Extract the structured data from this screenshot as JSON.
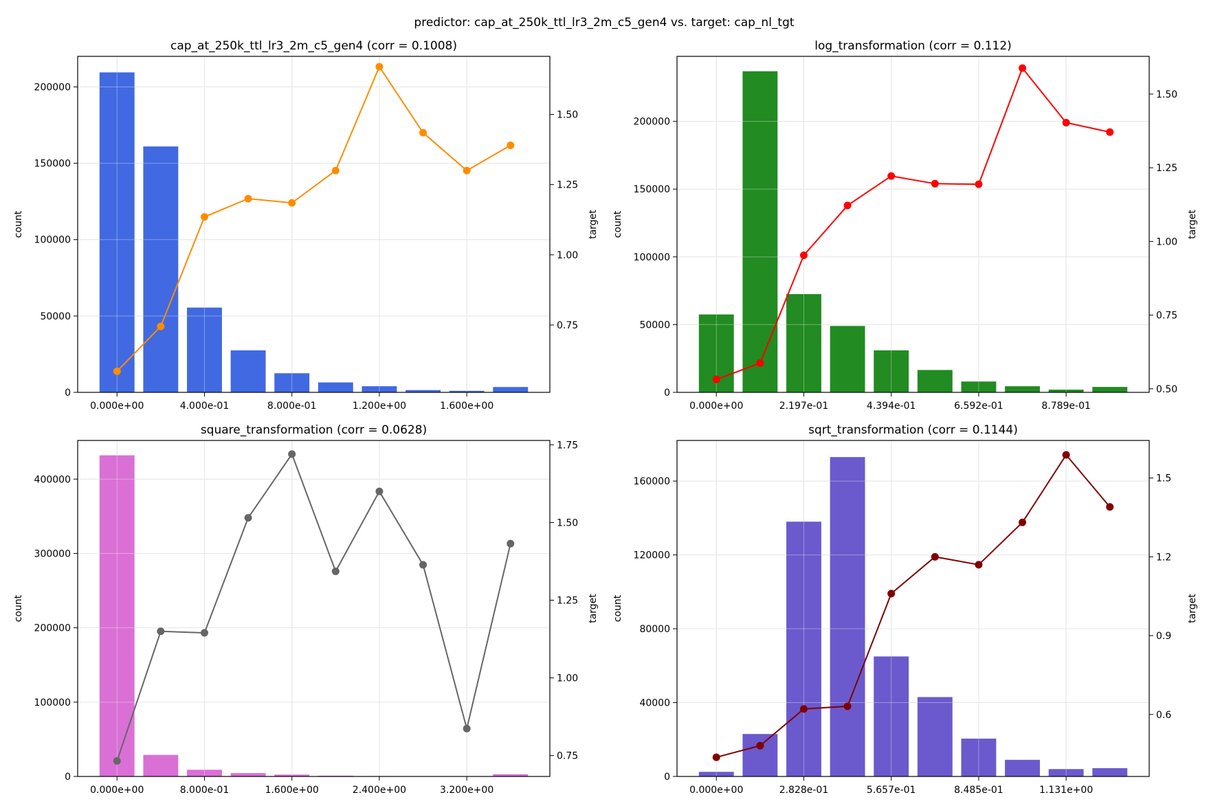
{
  "figure": {
    "suptitle": "predictor: cap_at_250k_ttl_lr3_2m_c5_gen4 vs. target: cap_nl_tgt"
  },
  "chart_data": [
    {
      "type": "bar",
      "title": "cap_at_250k_ttl_lr3_2m_c5_gen4 (corr = 0.1008)",
      "xlabel": "",
      "ylabel": "count",
      "y2label": "target",
      "bar_color": "#4169e1",
      "line_color": "#ff8c00",
      "x_tick_labels": [
        "0.000e+00",
        "4.000e-01",
        "8.000e-01",
        "1.200e+00",
        "1.600e+00"
      ],
      "x_tick_bins": [
        0,
        2,
        4,
        6,
        8
      ],
      "counts": [
        209500,
        161000,
        55500,
        27500,
        12500,
        6500,
        4000,
        1500,
        1000,
        3500
      ],
      "target": [
        0.585,
        0.745,
        1.135,
        1.2,
        1.185,
        1.3,
        1.67,
        1.435,
        1.3,
        1.39
      ],
      "ylim": [
        0,
        220000
      ],
      "y_ticks": [
        0,
        50000,
        100000,
        150000,
        200000
      ],
      "y2lim": [
        0.51,
        1.707
      ],
      "y2_ticks": [
        0.75,
        1.0,
        1.25,
        1.5
      ],
      "y2_tick_labels": [
        "0.75",
        "1.00",
        "1.25",
        "1.50"
      ],
      "grid": true
    },
    {
      "type": "bar",
      "title": "log_transformation (corr = 0.112)",
      "xlabel": "",
      "ylabel": "count",
      "y2label": "target",
      "bar_color": "#228b22",
      "line_color": "#ff0000",
      "x_tick_labels": [
        "0.000e+00",
        "2.197e-01",
        "4.394e-01",
        "6.592e-01",
        "8.789e-01"
      ],
      "x_tick_bins": [
        0,
        2,
        4,
        6,
        8
      ],
      "counts": [
        57500,
        237000,
        72500,
        49000,
        31000,
        16500,
        8000,
        4500,
        2000,
        4000
      ],
      "target": [
        0.532,
        0.587,
        0.953,
        1.122,
        1.222,
        1.196,
        1.194,
        1.588,
        1.403,
        1.371
      ],
      "ylim": [
        0,
        248000
      ],
      "y_ticks": [
        0,
        50000,
        100000,
        150000,
        200000
      ],
      "y2lim": [
        0.488,
        1.628
      ],
      "y2_ticks": [
        0.5,
        0.75,
        1.0,
        1.25,
        1.5
      ],
      "y2_tick_labels": [
        "0.50",
        "0.75",
        "1.00",
        "1.25",
        "1.50"
      ],
      "grid": true
    },
    {
      "type": "bar",
      "title": "square_transformation (corr = 0.0628)",
      "xlabel": "",
      "ylabel": "count",
      "y2label": "target",
      "bar_color": "#da70d6",
      "line_color": "#666666",
      "x_tick_labels": [
        "0.000e+00",
        "8.000e-01",
        "1.600e+00",
        "2.400e+00",
        "3.200e+00"
      ],
      "x_tick_bins": [
        0,
        2,
        4,
        6,
        8
      ],
      "counts": [
        432000,
        29000,
        9000,
        4500,
        2500,
        1000,
        500,
        300,
        200,
        3000
      ],
      "target": [
        0.733,
        1.15,
        1.145,
        1.515,
        1.72,
        1.343,
        1.6,
        1.364,
        0.837,
        1.432
      ],
      "ylim": [
        0,
        452000
      ],
      "y_ticks": [
        0,
        100000,
        200000,
        300000,
        400000
      ],
      "y2lim": [
        0.683,
        1.764
      ],
      "y2_ticks": [
        0.75,
        1.0,
        1.25,
        1.5,
        1.75
      ],
      "y2_tick_labels": [
        "0.75",
        "1.00",
        "1.25",
        "1.50",
        "1.75"
      ],
      "grid": true
    },
    {
      "type": "bar",
      "title": "sqrt_transformation (corr = 0.1144)",
      "xlabel": "",
      "ylabel": "count",
      "y2label": "target",
      "bar_color": "#6a5acd",
      "line_color": "#800000",
      "x_tick_labels": [
        "0.000e+00",
        "2.828e-01",
        "5.657e-01",
        "8.485e-01",
        "1.131e+00"
      ],
      "x_tick_bins": [
        0,
        2,
        4,
        6,
        8
      ],
      "counts": [
        2500,
        23000,
        138000,
        173000,
        65000,
        43000,
        20500,
        9000,
        4000,
        4500
      ],
      "target": [
        0.437,
        0.481,
        0.621,
        0.631,
        1.06,
        1.2,
        1.17,
        1.331,
        1.588,
        1.39
      ],
      "ylim": [
        0,
        182000
      ],
      "y_ticks": [
        0,
        40000,
        80000,
        120000,
        160000
      ],
      "y2lim": [
        0.364,
        1.643
      ],
      "y2_ticks": [
        0.6,
        0.9,
        1.2,
        1.5
      ],
      "y2_tick_labels": [
        "0.6",
        "0.9",
        "1.2",
        "1.5"
      ],
      "grid": true
    }
  ]
}
